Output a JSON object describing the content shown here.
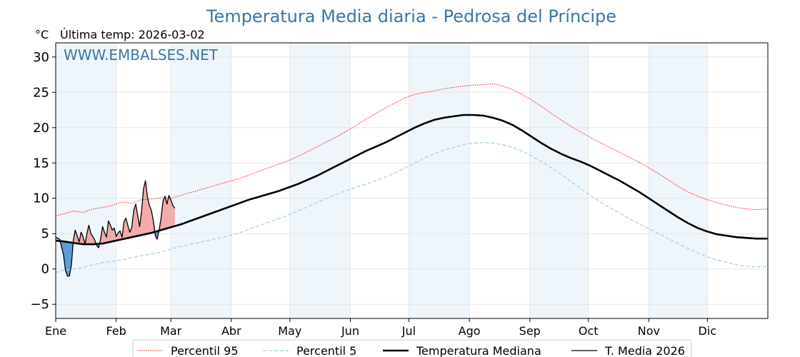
{
  "chart_data": {
    "type": "line",
    "title": "Temperatura Media diaria - Pedrosa del Príncipe",
    "subtitle": "Última temp: 2026-03-02",
    "ylabel": "°C",
    "watermark": "WWW.EMBALSES.NET",
    "ylim": [
      -7,
      32
    ],
    "yticks": [
      -5,
      0,
      5,
      10,
      15,
      20,
      25,
      30
    ],
    "xlim": [
      1,
      366
    ],
    "months": [
      {
        "label": "Ene",
        "day": 1
      },
      {
        "label": "Feb",
        "day": 32
      },
      {
        "label": "Mar",
        "day": 60
      },
      {
        "label": "Abr",
        "day": 91
      },
      {
        "label": "May",
        "day": 121
      },
      {
        "label": "Jun",
        "day": 152
      },
      {
        "label": "Jul",
        "day": 182
      },
      {
        "label": "Ago",
        "day": 213
      },
      {
        "label": "Sep",
        "day": 244
      },
      {
        "label": "Oct",
        "day": 274
      },
      {
        "label": "Nov",
        "day": 305
      },
      {
        "label": "Dic",
        "day": 335
      }
    ],
    "grid": true,
    "legend_position": "bottom",
    "series": [
      {
        "name": "Percentil 95",
        "color": "#ff0000",
        "style": "dotted",
        "points": [
          [
            1,
            7.5
          ],
          [
            5,
            7.8
          ],
          [
            10,
            8.2
          ],
          [
            15,
            8
          ],
          [
            20,
            8.5
          ],
          [
            25,
            8.7
          ],
          [
            30,
            9
          ],
          [
            35,
            9.5
          ],
          [
            40,
            9.3
          ],
          [
            45,
            9.8
          ],
          [
            50,
            9.9
          ],
          [
            55,
            10.1
          ],
          [
            60,
            10
          ],
          [
            65,
            10.4
          ],
          [
            70,
            10.8
          ],
          [
            75,
            11.2
          ],
          [
            80,
            11.6
          ],
          [
            85,
            12
          ],
          [
            90,
            12.4
          ],
          [
            95,
            12.8
          ],
          [
            100,
            13.3
          ],
          [
            105,
            13.8
          ],
          [
            110,
            14.3
          ],
          [
            115,
            14.8
          ],
          [
            120,
            15.3
          ],
          [
            125,
            15.9
          ],
          [
            130,
            16.6
          ],
          [
            135,
            17.3
          ],
          [
            140,
            18
          ],
          [
            145,
            18.7
          ],
          [
            150,
            19.5
          ],
          [
            155,
            20.3
          ],
          [
            160,
            21.2
          ],
          [
            165,
            22
          ],
          [
            170,
            22.8
          ],
          [
            175,
            23.5
          ],
          [
            180,
            24.2
          ],
          [
            185,
            24.7
          ],
          [
            190,
            25
          ],
          [
            195,
            25.2
          ],
          [
            200,
            25.5
          ],
          [
            205,
            25.7
          ],
          [
            210,
            25.9
          ],
          [
            215,
            26
          ],
          [
            220,
            26.1
          ],
          [
            225,
            26.2
          ],
          [
            230,
            25.9
          ],
          [
            235,
            25.4
          ],
          [
            240,
            24.7
          ],
          [
            245,
            23.9
          ],
          [
            250,
            23
          ],
          [
            255,
            22
          ],
          [
            260,
            21.1
          ],
          [
            265,
            20.2
          ],
          [
            270,
            19.4
          ],
          [
            275,
            18.6
          ],
          [
            280,
            17.9
          ],
          [
            285,
            17.2
          ],
          [
            290,
            16.5
          ],
          [
            295,
            15.8
          ],
          [
            300,
            15.1
          ],
          [
            305,
            14.3
          ],
          [
            310,
            13.5
          ],
          [
            315,
            12.6
          ],
          [
            320,
            11.7
          ],
          [
            325,
            10.9
          ],
          [
            330,
            10.3
          ],
          [
            335,
            9.8
          ],
          [
            340,
            9.4
          ],
          [
            345,
            9
          ],
          [
            350,
            8.7
          ],
          [
            355,
            8.5
          ],
          [
            360,
            8.4
          ],
          [
            366,
            8.5
          ]
        ]
      },
      {
        "name": "Percentil 5",
        "color": "#9fd0e0",
        "style": "dashed",
        "points": [
          [
            1,
            -0.5
          ],
          [
            5,
            -0.2
          ],
          [
            10,
            0
          ],
          [
            15,
            0.2
          ],
          [
            20,
            0.6
          ],
          [
            25,
            0.9
          ],
          [
            30,
            1.1
          ],
          [
            35,
            1.3
          ],
          [
            40,
            1.6
          ],
          [
            45,
            1.9
          ],
          [
            50,
            2.1
          ],
          [
            55,
            2.4
          ],
          [
            60,
            2.8
          ],
          [
            65,
            3.2
          ],
          [
            70,
            3.5
          ],
          [
            75,
            3.8
          ],
          [
            80,
            4.1
          ],
          [
            85,
            4.4
          ],
          [
            90,
            4.7
          ],
          [
            95,
            5.1
          ],
          [
            100,
            5.6
          ],
          [
            105,
            6.1
          ],
          [
            110,
            6.6
          ],
          [
            115,
            7.1
          ],
          [
            120,
            7.6
          ],
          [
            125,
            8.2
          ],
          [
            130,
            8.8
          ],
          [
            135,
            9.4
          ],
          [
            140,
            10
          ],
          [
            145,
            10.6
          ],
          [
            150,
            11.1
          ],
          [
            155,
            11.6
          ],
          [
            160,
            12
          ],
          [
            165,
            12.5
          ],
          [
            170,
            13
          ],
          [
            175,
            13.6
          ],
          [
            180,
            14.3
          ],
          [
            185,
            15
          ],
          [
            190,
            15.7
          ],
          [
            195,
            16.3
          ],
          [
            200,
            16.8
          ],
          [
            205,
            17.2
          ],
          [
            210,
            17.6
          ],
          [
            215,
            17.8
          ],
          [
            220,
            17.9
          ],
          [
            225,
            17.8
          ],
          [
            230,
            17.6
          ],
          [
            235,
            17.2
          ],
          [
            240,
            16.7
          ],
          [
            245,
            16
          ],
          [
            250,
            15.2
          ],
          [
            255,
            14.3
          ],
          [
            260,
            13.4
          ],
          [
            265,
            12.4
          ],
          [
            270,
            11.4
          ],
          [
            275,
            10.4
          ],
          [
            280,
            9.5
          ],
          [
            285,
            8.7
          ],
          [
            290,
            7.9
          ],
          [
            295,
            7.1
          ],
          [
            300,
            6.4
          ],
          [
            305,
            5.7
          ],
          [
            310,
            5
          ],
          [
            315,
            4.3
          ],
          [
            320,
            3.6
          ],
          [
            325,
            2.9
          ],
          [
            330,
            2.3
          ],
          [
            335,
            1.7
          ],
          [
            340,
            1.3
          ],
          [
            345,
            0.9
          ],
          [
            350,
            0.6
          ],
          [
            355,
            0.4
          ],
          [
            360,
            0.3
          ],
          [
            366,
            0.3
          ]
        ]
      },
      {
        "name": "Temperatura Mediana",
        "color": "#000000",
        "style": "solid-thick",
        "points": [
          [
            1,
            4
          ],
          [
            5,
            3.9
          ],
          [
            10,
            3.7
          ],
          [
            15,
            3.5
          ],
          [
            20,
            3.5
          ],
          [
            25,
            3.6
          ],
          [
            30,
            3.9
          ],
          [
            35,
            4.2
          ],
          [
            40,
            4.5
          ],
          [
            45,
            4.8
          ],
          [
            50,
            5.1
          ],
          [
            55,
            5.5
          ],
          [
            60,
            5.9
          ],
          [
            65,
            6.3
          ],
          [
            70,
            6.8
          ],
          [
            75,
            7.3
          ],
          [
            80,
            7.8
          ],
          [
            85,
            8.3
          ],
          [
            90,
            8.8
          ],
          [
            95,
            9.3
          ],
          [
            100,
            9.8
          ],
          [
            105,
            10.2
          ],
          [
            110,
            10.6
          ],
          [
            115,
            11
          ],
          [
            120,
            11.5
          ],
          [
            125,
            12
          ],
          [
            130,
            12.6
          ],
          [
            135,
            13.2
          ],
          [
            140,
            13.9
          ],
          [
            145,
            14.6
          ],
          [
            150,
            15.3
          ],
          [
            155,
            16
          ],
          [
            160,
            16.7
          ],
          [
            165,
            17.3
          ],
          [
            170,
            17.9
          ],
          [
            175,
            18.6
          ],
          [
            180,
            19.3
          ],
          [
            185,
            20
          ],
          [
            190,
            20.6
          ],
          [
            195,
            21.1
          ],
          [
            200,
            21.4
          ],
          [
            205,
            21.6
          ],
          [
            210,
            21.8
          ],
          [
            215,
            21.8
          ],
          [
            220,
            21.7
          ],
          [
            225,
            21.4
          ],
          [
            230,
            21
          ],
          [
            235,
            20.4
          ],
          [
            240,
            19.6
          ],
          [
            245,
            18.7
          ],
          [
            250,
            17.8
          ],
          [
            255,
            17
          ],
          [
            260,
            16.3
          ],
          [
            265,
            15.7
          ],
          [
            270,
            15.2
          ],
          [
            275,
            14.6
          ],
          [
            280,
            13.9
          ],
          [
            285,
            13.2
          ],
          [
            290,
            12.5
          ],
          [
            295,
            11.7
          ],
          [
            300,
            10.9
          ],
          [
            305,
            10
          ],
          [
            310,
            9.1
          ],
          [
            315,
            8.2
          ],
          [
            320,
            7.3
          ],
          [
            325,
            6.5
          ],
          [
            330,
            5.8
          ],
          [
            335,
            5.3
          ],
          [
            340,
            4.9
          ],
          [
            345,
            4.7
          ],
          [
            350,
            4.5
          ],
          [
            355,
            4.4
          ],
          [
            360,
            4.3
          ],
          [
            366,
            4.3
          ]
        ]
      },
      {
        "name": "T. Media 2026",
        "color": "#000000",
        "style": "solid-thin",
        "points": [
          [
            1,
            4.5
          ],
          [
            3,
            4.2
          ],
          [
            5,
            2
          ],
          [
            6,
            -0.2
          ],
          [
            7,
            -1
          ],
          [
            8,
            -1
          ],
          [
            9,
            0.5
          ],
          [
            10,
            4
          ],
          [
            11,
            5.5
          ],
          [
            12,
            4.7
          ],
          [
            13,
            3.8
          ],
          [
            14,
            5.2
          ],
          [
            15,
            4.6
          ],
          [
            16,
            3.5
          ],
          [
            17,
            5
          ],
          [
            18,
            6.2
          ],
          [
            19,
            5
          ],
          [
            20,
            4.6
          ],
          [
            21,
            4.1
          ],
          [
            22,
            3.3
          ],
          [
            23,
            3
          ],
          [
            24,
            4.2
          ],
          [
            25,
            6
          ],
          [
            26,
            5.2
          ],
          [
            27,
            4.5
          ],
          [
            28,
            6.8
          ],
          [
            29,
            6.2
          ],
          [
            30,
            5.5
          ],
          [
            31,
            5.8
          ],
          [
            32,
            4.6
          ],
          [
            33,
            5.1
          ],
          [
            34,
            5.4
          ],
          [
            35,
            4.5
          ],
          [
            36,
            6.7
          ],
          [
            37,
            7.2
          ],
          [
            38,
            6.1
          ],
          [
            39,
            5.2
          ],
          [
            40,
            5.9
          ],
          [
            41,
            8.3
          ],
          [
            42,
            9.2
          ],
          [
            43,
            7.6
          ],
          [
            44,
            6
          ],
          [
            45,
            8.1
          ],
          [
            46,
            11.3
          ],
          [
            47,
            12.5
          ],
          [
            48,
            10.2
          ],
          [
            49,
            9
          ],
          [
            50,
            8.3
          ],
          [
            51,
            6.9
          ],
          [
            52,
            4.8
          ],
          [
            53,
            4.2
          ],
          [
            54,
            5.5
          ],
          [
            55,
            7.2
          ],
          [
            56,
            9.6
          ],
          [
            57,
            10.3
          ],
          [
            58,
            9.2
          ],
          [
            59,
            10.4
          ],
          [
            60,
            9.8
          ],
          [
            61,
            9
          ],
          [
            62,
            8.6
          ]
        ]
      }
    ]
  },
  "legend": [
    {
      "label": "Percentil 95",
      "color": "#ff0000",
      "style": "dotted"
    },
    {
      "label": "Percentil 5",
      "color": "#9fd0e0",
      "style": "dashed"
    },
    {
      "label": "Temperatura Mediana",
      "color": "#000000",
      "style": "solid-thick"
    },
    {
      "label": "T. Media 2026",
      "color": "#000000",
      "style": "solid-thin"
    }
  ],
  "colors": {
    "title": "#3b76a8",
    "watermark": "#3b76a8",
    "warm_fill": "#f4a8a8",
    "cold_fill": "#5b9bd5",
    "month_band": "#eef5fb"
  }
}
